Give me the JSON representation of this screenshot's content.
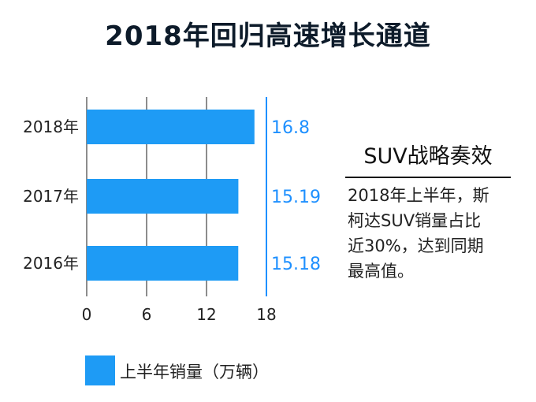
{
  "colors": {
    "bar": "#1e9bf5",
    "value_label": "#1e90ff",
    "divider": "#1e90ff"
  },
  "chart_data": {
    "type": "bar",
    "orientation": "horizontal",
    "title": "2018年回归高速增长通道",
    "categories": [
      "2018年",
      "2017年",
      "2016年"
    ],
    "series": [
      {
        "name": "上半年销量（万辆）",
        "values": [
          16.8,
          15.19,
          15.18
        ]
      }
    ],
    "value_labels": [
      "16.8",
      "15.19",
      "15.18"
    ],
    "xlim": [
      0,
      18
    ],
    "xticks": [
      "0",
      "6",
      "12",
      "18"
    ],
    "grid": true,
    "legend_position": "bottom-left"
  },
  "side_panel": {
    "title": "SUV战略奏效",
    "text_lines": [
      "2018年上半年，斯",
      "柯达SUV销量占比",
      "近30%，达到同期",
      "最高值。"
    ]
  },
  "legend": {
    "label": "上半年销量（万辆）"
  }
}
